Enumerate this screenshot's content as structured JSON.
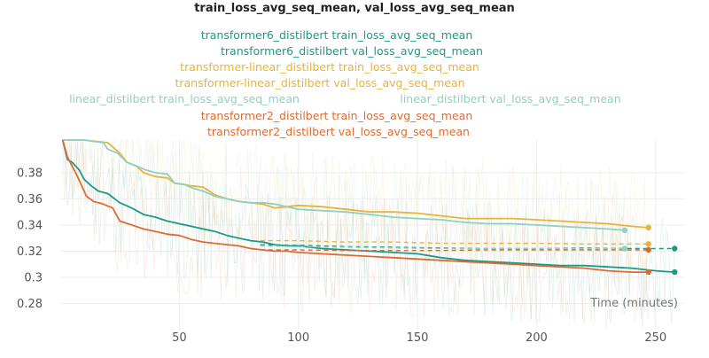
{
  "chart_data": {
    "type": "line",
    "title": "train_loss_avg_seq_mean, val_loss_avg_seq_mean",
    "xlabel": "Time (minutes)",
    "ylabel": "",
    "xlim": [
      0,
      262
    ],
    "ylim": [
      0.26,
      0.405
    ],
    "xticks": [
      50,
      100,
      150,
      200,
      250
    ],
    "yticks": [
      0.28,
      0.3,
      0.32,
      0.34,
      0.36,
      0.38
    ],
    "ytick_labels": [
      "0.28",
      "0.3",
      "0.32",
      "0.34",
      "0.36",
      "0.38"
    ],
    "grid": true,
    "legend_position": "top",
    "series": [
      {
        "name": "transformer6_distilbert train_loss_avg_seq_mean",
        "color": "#1a9a87",
        "style": "solid",
        "points": [
          [
            1,
            0.405
          ],
          [
            3,
            0.39
          ],
          [
            5,
            0.388
          ],
          [
            8,
            0.382
          ],
          [
            10,
            0.375
          ],
          [
            13,
            0.37
          ],
          [
            16,
            0.366
          ],
          [
            20,
            0.364
          ],
          [
            25,
            0.357
          ],
          [
            30,
            0.353
          ],
          [
            35,
            0.348
          ],
          [
            40,
            0.346
          ],
          [
            45,
            0.343
          ],
          [
            50,
            0.341
          ],
          [
            55,
            0.339
          ],
          [
            60,
            0.337
          ],
          [
            65,
            0.335
          ],
          [
            70,
            0.332
          ],
          [
            75,
            0.33
          ],
          [
            80,
            0.328
          ],
          [
            85,
            0.327
          ],
          [
            90,
            0.325
          ],
          [
            95,
            0.324
          ],
          [
            100,
            0.324
          ],
          [
            110,
            0.322
          ],
          [
            120,
            0.321
          ],
          [
            130,
            0.32
          ],
          [
            140,
            0.319
          ],
          [
            150,
            0.318
          ],
          [
            160,
            0.315
          ],
          [
            170,
            0.313
          ],
          [
            180,
            0.312
          ],
          [
            190,
            0.311
          ],
          [
            200,
            0.31
          ],
          [
            210,
            0.309
          ],
          [
            220,
            0.309
          ],
          [
            230,
            0.308
          ],
          [
            240,
            0.307
          ],
          [
            250,
            0.305
          ],
          [
            258,
            0.304
          ]
        ]
      },
      {
        "name": "transformer6_distilbert val_loss_avg_seq_mean",
        "color": "#1a9a87",
        "style": "dashed",
        "points": [
          [
            84,
            0.325
          ],
          [
            100,
            0.3245
          ],
          [
            120,
            0.3235
          ],
          [
            140,
            0.323
          ],
          [
            160,
            0.3225
          ],
          [
            180,
            0.322
          ],
          [
            200,
            0.322
          ],
          [
            220,
            0.3225
          ],
          [
            240,
            0.322
          ],
          [
            258,
            0.322
          ]
        ]
      },
      {
        "name": "transformer-linear_distilbert train_loss_avg_seq_mean",
        "color": "#e8b33a",
        "style": "solid",
        "points": [
          [
            1,
            0.405
          ],
          [
            10,
            0.405
          ],
          [
            20,
            0.403
          ],
          [
            25,
            0.395
          ],
          [
            28,
            0.388
          ],
          [
            32,
            0.385
          ],
          [
            35,
            0.38
          ],
          [
            40,
            0.377
          ],
          [
            45,
            0.376
          ],
          [
            48,
            0.372
          ],
          [
            52,
            0.371
          ],
          [
            55,
            0.37
          ],
          [
            60,
            0.369
          ],
          [
            65,
            0.363
          ],
          [
            70,
            0.36
          ],
          [
            75,
            0.358
          ],
          [
            80,
            0.357
          ],
          [
            85,
            0.356
          ],
          [
            90,
            0.353
          ],
          [
            95,
            0.354
          ],
          [
            100,
            0.355
          ],
          [
            110,
            0.354
          ],
          [
            120,
            0.352
          ],
          [
            130,
            0.35
          ],
          [
            140,
            0.35
          ],
          [
            150,
            0.349
          ],
          [
            160,
            0.347
          ],
          [
            170,
            0.345
          ],
          [
            180,
            0.345
          ],
          [
            190,
            0.345
          ],
          [
            200,
            0.344
          ],
          [
            210,
            0.343
          ],
          [
            220,
            0.342
          ],
          [
            230,
            0.341
          ],
          [
            240,
            0.339
          ],
          [
            247,
            0.338
          ]
        ]
      },
      {
        "name": "transformer-linear_distilbert val_loss_avg_seq_mean",
        "color": "#e8b33a",
        "style": "dashed",
        "points": [
          [
            84,
            0.328
          ],
          [
            100,
            0.328
          ],
          [
            120,
            0.327
          ],
          [
            140,
            0.327
          ],
          [
            160,
            0.326
          ],
          [
            180,
            0.326
          ],
          [
            200,
            0.326
          ],
          [
            220,
            0.3255
          ],
          [
            247,
            0.3255
          ]
        ]
      },
      {
        "name": "linear_distilbert train_loss_avg_seq_mean",
        "color": "#8fd0c0",
        "style": "solid",
        "points": [
          [
            1,
            0.405
          ],
          [
            10,
            0.405
          ],
          [
            18,
            0.403
          ],
          [
            20,
            0.398
          ],
          [
            24,
            0.395
          ],
          [
            28,
            0.388
          ],
          [
            32,
            0.385
          ],
          [
            36,
            0.382
          ],
          [
            40,
            0.38
          ],
          [
            45,
            0.379
          ],
          [
            48,
            0.372
          ],
          [
            52,
            0.371
          ],
          [
            56,
            0.368
          ],
          [
            60,
            0.366
          ],
          [
            65,
            0.362
          ],
          [
            70,
            0.36
          ],
          [
            75,
            0.358
          ],
          [
            80,
            0.357
          ],
          [
            85,
            0.357
          ],
          [
            90,
            0.356
          ],
          [
            95,
            0.354
          ],
          [
            100,
            0.352
          ],
          [
            110,
            0.351
          ],
          [
            120,
            0.35
          ],
          [
            130,
            0.348
          ],
          [
            140,
            0.346
          ],
          [
            150,
            0.345
          ],
          [
            160,
            0.344
          ],
          [
            170,
            0.342
          ],
          [
            180,
            0.341
          ],
          [
            190,
            0.341
          ],
          [
            200,
            0.34
          ],
          [
            210,
            0.339
          ],
          [
            220,
            0.338
          ],
          [
            230,
            0.337
          ],
          [
            237,
            0.336
          ]
        ]
      },
      {
        "name": "linear_distilbert val_loss_avg_seq_mean",
        "color": "#8fd0c0",
        "style": "dashed",
        "points": [
          [
            84,
            0.324
          ],
          [
            100,
            0.3235
          ],
          [
            120,
            0.323
          ],
          [
            140,
            0.3225
          ],
          [
            160,
            0.322
          ],
          [
            180,
            0.322
          ],
          [
            200,
            0.322
          ],
          [
            220,
            0.322
          ],
          [
            237,
            0.322
          ]
        ]
      },
      {
        "name": "transformer2_distilbert train_loss_avg_seq_mean",
        "color": "#dc6b33",
        "style": "solid",
        "points": [
          [
            1,
            0.405
          ],
          [
            3,
            0.392
          ],
          [
            5,
            0.385
          ],
          [
            7,
            0.378
          ],
          [
            9,
            0.37
          ],
          [
            11,
            0.362
          ],
          [
            14,
            0.358
          ],
          [
            18,
            0.356
          ],
          [
            22,
            0.353
          ],
          [
            25,
            0.343
          ],
          [
            30,
            0.34
          ],
          [
            35,
            0.337
          ],
          [
            40,
            0.335
          ],
          [
            45,
            0.333
          ],
          [
            50,
            0.332
          ],
          [
            55,
            0.329
          ],
          [
            60,
            0.327
          ],
          [
            65,
            0.326
          ],
          [
            70,
            0.325
          ],
          [
            75,
            0.324
          ],
          [
            80,
            0.322
          ],
          [
            85,
            0.321
          ],
          [
            90,
            0.32
          ],
          [
            95,
            0.32
          ],
          [
            100,
            0.319
          ],
          [
            110,
            0.318
          ],
          [
            120,
            0.317
          ],
          [
            130,
            0.316
          ],
          [
            140,
            0.315
          ],
          [
            150,
            0.314
          ],
          [
            160,
            0.313
          ],
          [
            170,
            0.312
          ],
          [
            180,
            0.311
          ],
          [
            190,
            0.31
          ],
          [
            200,
            0.309
          ],
          [
            210,
            0.308
          ],
          [
            220,
            0.307
          ],
          [
            230,
            0.305
          ],
          [
            240,
            0.304
          ],
          [
            247,
            0.304
          ]
        ]
      },
      {
        "name": "transformer2_distilbert val_loss_avg_seq_mean",
        "color": "#dc6b33",
        "style": "dashed",
        "points": [
          [
            84,
            0.321
          ],
          [
            100,
            0.321
          ],
          [
            120,
            0.3205
          ],
          [
            140,
            0.3205
          ],
          [
            160,
            0.3205
          ],
          [
            180,
            0.321
          ],
          [
            200,
            0.321
          ],
          [
            220,
            0.321
          ],
          [
            247,
            0.321
          ]
        ]
      }
    ]
  }
}
